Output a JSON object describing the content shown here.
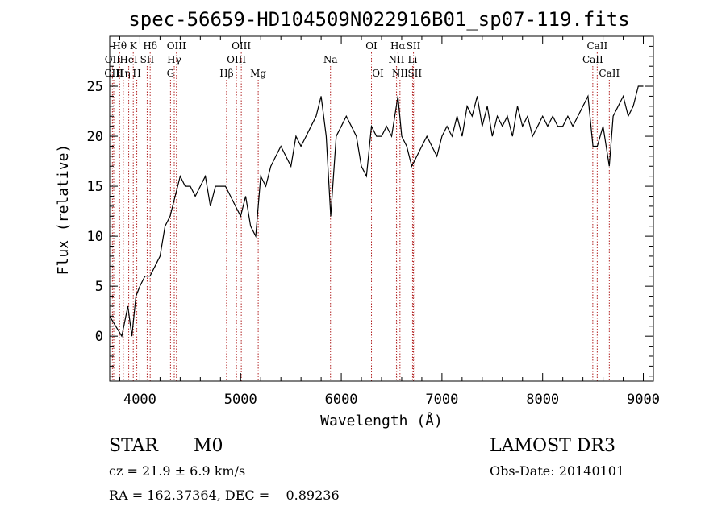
{
  "chart_data": {
    "type": "line",
    "title": "spec-56659-HD104509N022916B01_sp07-119.fits",
    "xlabel": "Wavelength (Å)",
    "ylabel": "Flux (relative)",
    "xlim": [
      3700,
      9100
    ],
    "ylim": [
      -4.5,
      30
    ],
    "x_ticks": [
      4000,
      5000,
      6000,
      7000,
      8000,
      9000
    ],
    "y_ticks": [
      0,
      5,
      10,
      15,
      20,
      25
    ],
    "series": [
      {
        "name": "flux",
        "x": [
          3700,
          3760,
          3820,
          3880,
          3920,
          3960,
          4000,
          4050,
          4100,
          4150,
          4200,
          4250,
          4300,
          4350,
          4400,
          4450,
          4500,
          4550,
          4600,
          4650,
          4700,
          4750,
          4800,
          4850,
          4900,
          4950,
          5000,
          5050,
          5100,
          5150,
          5200,
          5250,
          5300,
          5350,
          5400,
          5450,
          5500,
          5550,
          5600,
          5650,
          5700,
          5750,
          5800,
          5850,
          5895,
          5950,
          6000,
          6050,
          6100,
          6150,
          6200,
          6250,
          6300,
          6350,
          6400,
          6450,
          6500,
          6563,
          6600,
          6650,
          6700,
          6750,
          6800,
          6850,
          6900,
          6950,
          7000,
          7050,
          7100,
          7150,
          7200,
          7250,
          7300,
          7350,
          7400,
          7450,
          7500,
          7550,
          7600,
          7650,
          7700,
          7750,
          7800,
          7850,
          7900,
          7950,
          8000,
          8050,
          8100,
          8150,
          8200,
          8250,
          8300,
          8350,
          8400,
          8450,
          8500,
          8542,
          8600,
          8662,
          8700,
          8750,
          8800,
          8850,
          8900,
          8950,
          9000
        ],
        "y": [
          2,
          1,
          0,
          3,
          0,
          4,
          5,
          6,
          6,
          7,
          8,
          11,
          12,
          14,
          16,
          15,
          15,
          14,
          15,
          16,
          13,
          15,
          15,
          15,
          14,
          13,
          12,
          14,
          11,
          10,
          16,
          15,
          17,
          18,
          19,
          18,
          17,
          20,
          19,
          20,
          21,
          22,
          24,
          20,
          12,
          20,
          21,
          22,
          21,
          20,
          17,
          16,
          21,
          20,
          20,
          21,
          20,
          24,
          20,
          19,
          17,
          18,
          19,
          20,
          19,
          18,
          20,
          21,
          20,
          22,
          20,
          23,
          22,
          24,
          21,
          23,
          20,
          22,
          21,
          22,
          20,
          23,
          21,
          22,
          20,
          21,
          22,
          21,
          22,
          21,
          21,
          22,
          21,
          22,
          23,
          24,
          19,
          19,
          21,
          17,
          22,
          23,
          24,
          22,
          23,
          25,
          25
        ]
      }
    ],
    "line_markers": [
      {
        "label": "Hθ",
        "x": 3798,
        "row": 0
      },
      {
        "label": "OII",
        "x": 3727,
        "row": 1
      },
      {
        "label": "CIII",
        "x": 3740,
        "row": 2
      },
      {
        "label": "Hη",
        "x": 3835,
        "row": 2
      },
      {
        "label": "HeI",
        "x": 3889,
        "row": 1
      },
      {
        "label": "K",
        "x": 3934,
        "row": 0
      },
      {
        "label": "H",
        "x": 3969,
        "row": 2
      },
      {
        "label": "SII",
        "x": 4072,
        "row": 1
      },
      {
        "label": "Hδ",
        "x": 4102,
        "row": 0
      },
      {
        "label": "OIII",
        "x": 4363,
        "row": 0
      },
      {
        "label": "Hγ",
        "x": 4341,
        "row": 1
      },
      {
        "label": "G",
        "x": 4304,
        "row": 2
      },
      {
        "label": "Hβ",
        "x": 4861,
        "row": 2
      },
      {
        "label": "OIII",
        "x": 5007,
        "row": 0
      },
      {
        "label": "OIII",
        "x": 4959,
        "row": 1
      },
      {
        "label": "Mg",
        "x": 5175,
        "row": 2
      },
      {
        "label": "Na",
        "x": 5893,
        "row": 1
      },
      {
        "label": "OI",
        "x": 6300,
        "row": 0
      },
      {
        "label": "OI",
        "x": 6364,
        "row": 2
      },
      {
        "label": "Hα",
        "x": 6563,
        "row": 0
      },
      {
        "label": "SII",
        "x": 6717,
        "row": 0
      },
      {
        "label": "NII",
        "x": 6548,
        "row": 1
      },
      {
        "label": "Li",
        "x": 6708,
        "row": 1
      },
      {
        "label": "NII",
        "x": 6583,
        "row": 2
      },
      {
        "label": "SII",
        "x": 6731,
        "row": 2
      },
      {
        "label": "CaII",
        "x": 8542,
        "row": 0
      },
      {
        "label": "CaII",
        "x": 8498,
        "row": 1
      },
      {
        "label": "CaII",
        "x": 8662,
        "row": 2
      }
    ]
  },
  "info": {
    "object_class": "STAR",
    "subclass": "M0",
    "survey": "LAMOST DR3",
    "redshift": "cz = 21.9 ± 6.9 km/s",
    "obs_date": "Obs-Date: 20140101",
    "coords": "RA = 162.37364, DEC =    0.89236"
  },
  "colors": {
    "marker_line": "#b22222",
    "axis": "#000000",
    "spectrum": "#000000"
  }
}
